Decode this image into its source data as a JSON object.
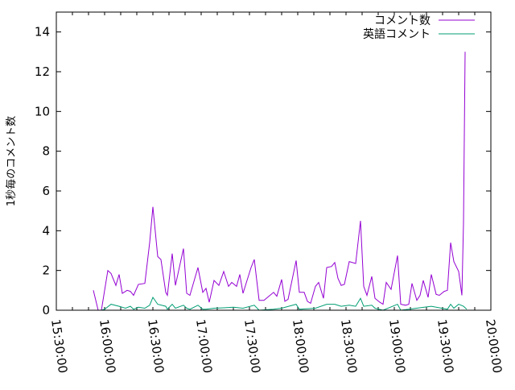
{
  "chart_data": {
    "type": "line",
    "title": "",
    "xlabel": "",
    "ylabel": "1秒毎のコメント数",
    "xlim": [
      "15:30:00",
      "20:00:00"
    ],
    "ylim": [
      0,
      15
    ],
    "xticks": [
      "15:30:00",
      "16:00:00",
      "16:30:00",
      "17:00:00",
      "17:30:00",
      "18:00:00",
      "18:30:00",
      "19:00:00",
      "19:30:00",
      "20:00:00"
    ],
    "yticks": [
      "0",
      "2",
      "4",
      "6",
      "8",
      "10",
      "12",
      "14"
    ],
    "grid": false,
    "legend_position": "top-right",
    "series": [
      {
        "name": "コメント数",
        "color": "#9400d3",
        "x": [
          "15:53",
          "15:56",
          "15:58",
          "16:02",
          "16:04",
          "16:07",
          "16:09",
          "16:11",
          "16:14",
          "16:16",
          "16:18",
          "16:21",
          "16:25",
          "16:28",
          "16:30",
          "16:33",
          "16:35",
          "16:38",
          "16:39",
          "16:42",
          "16:44",
          "16:49",
          "16:51",
          "16:53",
          "16:58",
          "17:01",
          "17:03",
          "17:05",
          "17:08",
          "17:11",
          "17:14",
          "17:17",
          "17:19",
          "17:22",
          "17:24",
          "17:26",
          "17:31",
          "17:33",
          "17:36",
          "17:39",
          "17:42",
          "17:45",
          "17:47",
          "17:50",
          "17:52",
          "17:54",
          "17:59",
          "18:01",
          "18:04",
          "18:06",
          "18:08",
          "18:11",
          "18:13",
          "18:16",
          "18:18",
          "18:21",
          "18:23",
          "18:25",
          "18:27",
          "18:29",
          "18:32",
          "18:36",
          "18:39",
          "18:41",
          "18:43",
          "18:46",
          "18:48",
          "18:51",
          "18:53",
          "18:55",
          "18:58",
          "19:02",
          "19:04",
          "19:07",
          "19:09",
          "19:11",
          "19:14",
          "19:16",
          "19:18",
          "19:21",
          "19:23",
          "19:26",
          "19:28",
          "19:31",
          "19:33",
          "19:35",
          "19:37",
          "19:40",
          "19:42",
          "19:43",
          "19:44"
        ],
        "values": [
          1.0,
          0,
          0,
          2.0,
          1.85,
          1.25,
          1.8,
          0.85,
          1.0,
          0.95,
          0.75,
          1.3,
          1.35,
          3.4,
          5.2,
          2.7,
          2.55,
          0.9,
          0.75,
          2.85,
          1.25,
          3.1,
          0.85,
          0.75,
          2.15,
          0.9,
          1.1,
          0.4,
          1.5,
          1.25,
          1.95,
          1.2,
          1.4,
          1.2,
          1.8,
          0.85,
          2.15,
          2.55,
          0.5,
          0.5,
          0.7,
          0.9,
          0.7,
          1.55,
          0.45,
          0.55,
          2.5,
          0.9,
          0.9,
          0.45,
          0.35,
          1.2,
          1.4,
          0.6,
          2.15,
          2.2,
          2.4,
          1.6,
          1.25,
          1.3,
          2.45,
          2.35,
          4.5,
          1.2,
          0.75,
          1.7,
          0.6,
          0.4,
          0.3,
          1.4,
          1.05,
          2.75,
          0.3,
          0.25,
          0.3,
          1.35,
          0.5,
          0.75,
          1.5,
          0.65,
          1.8,
          0.8,
          0.75,
          0.95,
          1.0,
          3.4,
          2.45,
          1.95,
          0.75,
          4.4,
          13.0
        ]
      },
      {
        "name": "英語コメント",
        "color": "#009e73",
        "x": [
          "15:58",
          "16:00",
          "16:04",
          "16:09",
          "16:13",
          "16:16",
          "16:18",
          "16:21",
          "16:25",
          "16:28",
          "16:30",
          "16:33",
          "16:38",
          "16:39",
          "16:42",
          "16:44",
          "16:49",
          "16:51",
          "16:53",
          "16:58",
          "17:01",
          "17:03",
          "17:08",
          "17:14",
          "17:20",
          "17:26",
          "17:33",
          "17:36",
          "17:45",
          "17:50",
          "17:59",
          "18:01",
          "18:11",
          "18:18",
          "18:23",
          "18:27",
          "18:32",
          "18:36",
          "18:39",
          "18:41",
          "18:46",
          "18:48",
          "18:53",
          "19:02",
          "19:04",
          "19:23",
          "19:33",
          "19:35",
          "19:37",
          "19:40",
          "19:43",
          "19:45"
        ],
        "values": [
          0,
          0.05,
          0.3,
          0.2,
          0.1,
          0.2,
          0.05,
          0.15,
          0.1,
          0.25,
          0.65,
          0.3,
          0.2,
          0.05,
          0.3,
          0.1,
          0.25,
          0.1,
          0.05,
          0.25,
          0.05,
          0.05,
          0.1,
          0.12,
          0.15,
          0.1,
          0.25,
          0.0,
          0.05,
          0.1,
          0.3,
          0.05,
          0.1,
          0.3,
          0.3,
          0.2,
          0.25,
          0.2,
          0.6,
          0.2,
          0.25,
          0.1,
          0.0,
          0.3,
          0.0,
          0.2,
          0.05,
          0.3,
          0.1,
          0.3,
          0.2,
          0.05
        ]
      }
    ]
  }
}
